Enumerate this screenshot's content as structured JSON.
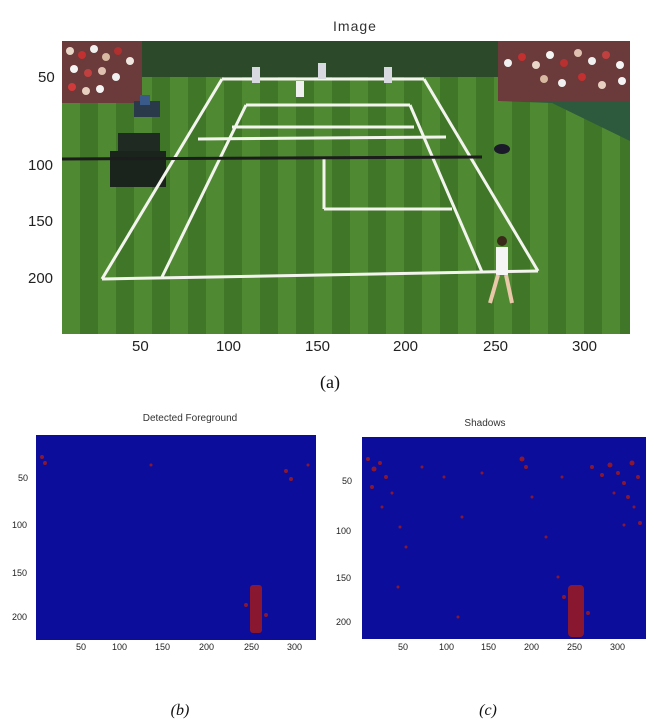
{
  "panel_a": {
    "title": "Image",
    "xticks": [
      "50",
      "100",
      "150",
      "200",
      "250",
      "300"
    ],
    "yticks": [
      "50",
      "100",
      "150",
      "200"
    ],
    "caption": "(a)"
  },
  "panel_b": {
    "title": "Detected Foreground",
    "xticks": [
      "50",
      "100",
      "150",
      "200",
      "250",
      "300"
    ],
    "yticks": [
      "50",
      "100",
      "150",
      "200"
    ],
    "caption": "(b)"
  },
  "panel_c": {
    "title": "Shadows",
    "xticks": [
      "50",
      "100",
      "150",
      "200",
      "250",
      "300"
    ],
    "yticks": [
      "50",
      "100",
      "150",
      "200"
    ],
    "caption": "(c)"
  },
  "colors": {
    "map_background": "#0d0d9c",
    "map_detections": "#8a1730",
    "grass_light": "#4f8a33",
    "grass_dark": "#3f7628",
    "court_line": "#f4f4ee"
  }
}
